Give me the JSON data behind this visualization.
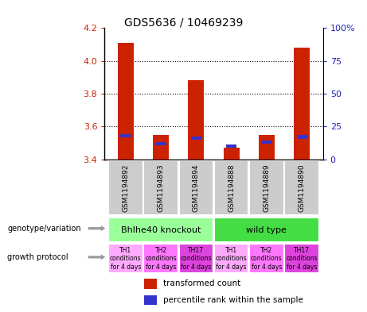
{
  "title": "GDS5636 / 10469239",
  "samples": [
    "GSM1194892",
    "GSM1194893",
    "GSM1194894",
    "GSM1194888",
    "GSM1194889",
    "GSM1194890"
  ],
  "transformed_count": [
    4.11,
    3.55,
    3.88,
    3.47,
    3.55,
    4.08
  ],
  "percentile_rank": [
    18,
    12,
    16,
    10,
    13,
    17
  ],
  "y_min": 3.4,
  "y_max": 4.2,
  "y_ticks": [
    3.4,
    3.6,
    3.8,
    4.0,
    4.2
  ],
  "y2_ticks": [
    0,
    25,
    50,
    75,
    100
  ],
  "bar_color": "#CC2200",
  "percentile_color": "#3333CC",
  "bar_width": 0.45,
  "genotype_groups": [
    {
      "label": "Bhlhe40 knockout",
      "span": [
        0,
        3
      ],
      "color": "#99FF99"
    },
    {
      "label": "wild type",
      "span": [
        3,
        6
      ],
      "color": "#44DD44"
    }
  ],
  "growth_protocol_labels": [
    "TH1\nconditions\nfor 4 days",
    "TH2\nconditions\nfor 4 days",
    "TH17\nconditions\nfor 4 days",
    "TH1\nconditions\nfor 4 days",
    "TH2\nconditions\nfor 4 days",
    "TH17\nconditions\nfor 4 days"
  ],
  "growth_protocol_colors": [
    "#FFAAFF",
    "#FF77FF",
    "#DD44DD",
    "#FFAAFF",
    "#FF77FF",
    "#DD44DD"
  ],
  "sample_box_color": "#CCCCCC",
  "legend_items": [
    {
      "label": "transformed count",
      "color": "#CC2200"
    },
    {
      "label": "percentile rank within the sample",
      "color": "#3333CC"
    }
  ],
  "left_labels": [
    "genotype/variation",
    "growth protocol"
  ],
  "background_color": "#FFFFFF",
  "plot_bg_color": "#FFFFFF",
  "tick_color_left": "#CC2200",
  "tick_color_right": "#2222BB",
  "arrow_color": "#999999"
}
